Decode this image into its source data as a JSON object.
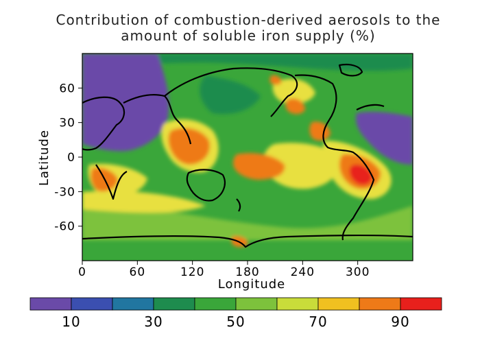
{
  "title": {
    "line1": "Contribution of combustion-derived aerosols to the",
    "line2": "amount of soluble iron supply (%)"
  },
  "axes": {
    "xlabel": "Longitude",
    "ylabel": "Latitude",
    "x_ticks": [
      0,
      60,
      120,
      180,
      240,
      300
    ],
    "y_ticks": [
      60,
      30,
      0,
      -30,
      -60
    ],
    "x_range": [
      0,
      360
    ],
    "y_range": [
      -90,
      90
    ]
  },
  "colorbar": {
    "colors": [
      "#6a4aa8",
      "#3b4fb0",
      "#2176a0",
      "#1e8c4e",
      "#3aa63a",
      "#7dc23c",
      "#c9dc3a",
      "#f0c020",
      "#ee7a18",
      "#e8201c"
    ],
    "tick_labels": [
      "10",
      "30",
      "50",
      "70",
      "90"
    ]
  },
  "map_palette": {
    "purple": "#6a4aa8",
    "dark_green": "#1e8c4e",
    "green": "#3aa63a",
    "light_green": "#7dc23c",
    "yellow": "#e8e040",
    "orange": "#ee7a18",
    "red": "#e8201c",
    "coast": "#000000"
  }
}
